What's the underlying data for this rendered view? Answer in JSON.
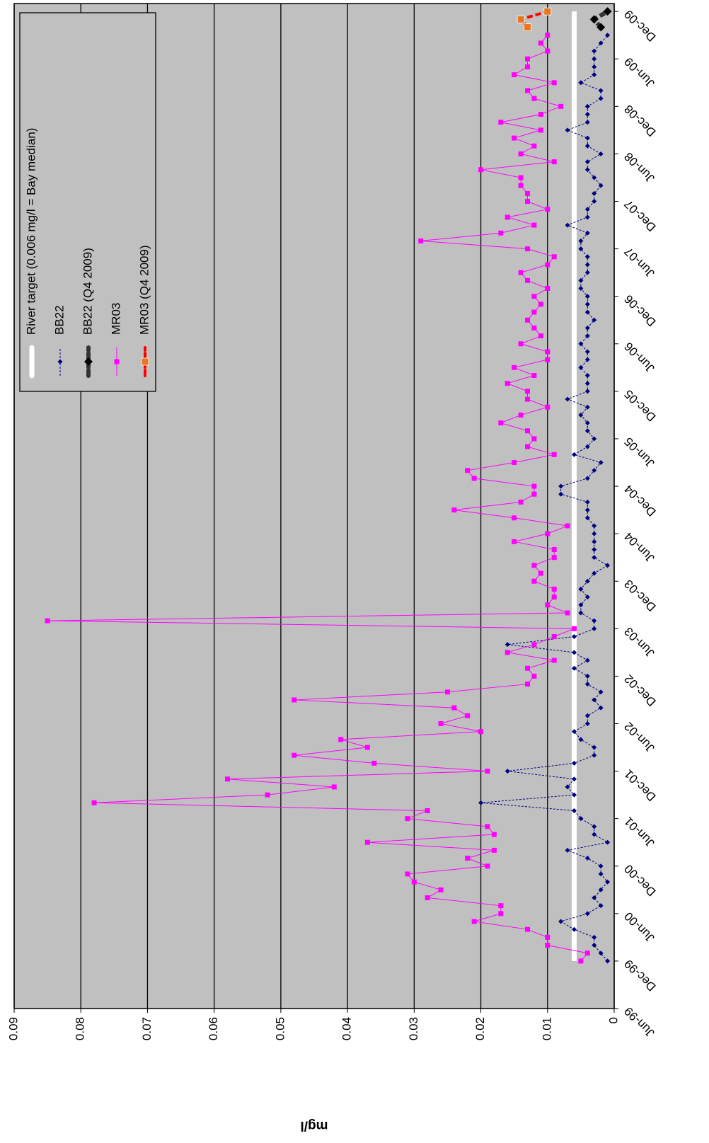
{
  "chart_data": {
    "type": "line",
    "y_label": "mg/l",
    "xlim": [
      "1999-06",
      "2010-01"
    ],
    "xticks": [
      {
        "value": "1999-06",
        "label": "Jun-99"
      },
      {
        "value": "1999-12",
        "label": "Dec-99"
      },
      {
        "value": "2000-06",
        "label": "Jun-00"
      },
      {
        "value": "2000-12",
        "label": "Dec-00"
      },
      {
        "value": "2001-06",
        "label": "Jun-01"
      },
      {
        "value": "2001-12",
        "label": "Dec-01"
      },
      {
        "value": "2002-06",
        "label": "Jun-02"
      },
      {
        "value": "2002-12",
        "label": "Dec-02"
      },
      {
        "value": "2003-06",
        "label": "Jun-03"
      },
      {
        "value": "2003-12",
        "label": "Dec-03"
      },
      {
        "value": "2004-06",
        "label": "Jun-04"
      },
      {
        "value": "2004-12",
        "label": "Dec-04"
      },
      {
        "value": "2005-06",
        "label": "Jun-05"
      },
      {
        "value": "2005-12",
        "label": "Dec-05"
      },
      {
        "value": "2006-06",
        "label": "Jun-06"
      },
      {
        "value": "2006-12",
        "label": "Dec-06"
      },
      {
        "value": "2007-06",
        "label": "Jun-07"
      },
      {
        "value": "2007-12",
        "label": "Dec-07"
      },
      {
        "value": "2008-06",
        "label": "Jun-08"
      },
      {
        "value": "2008-12",
        "label": "Dec-08"
      },
      {
        "value": "2009-06",
        "label": "Jun-09"
      },
      {
        "value": "2009-12",
        "label": "Dec-09"
      }
    ],
    "ylim": [
      0,
      0.09
    ],
    "yticks": [
      0,
      0.01,
      0.02,
      0.03,
      0.04,
      0.05,
      0.06,
      0.07,
      0.08,
      0.09
    ],
    "grid": true,
    "legend": "top-right",
    "x": [
      "1999-12",
      "2000-01",
      "2000-02",
      "2000-03",
      "2000-04",
      "2000-05",
      "2000-06",
      "2000-07",
      "2000-08",
      "2000-09",
      "2000-10",
      "2000-11",
      "2000-12",
      "2001-01",
      "2001-02",
      "2001-03",
      "2001-04",
      "2001-05",
      "2001-06",
      "2001-07",
      "2001-08",
      "2001-09",
      "2001-10",
      "2001-11",
      "2001-12",
      "2002-01",
      "2002-02",
      "2002-03",
      "2002-04",
      "2002-05",
      "2002-06",
      "2002-07",
      "2002-08",
      "2002-09",
      "2002-10",
      "2002-11",
      "2002-12",
      "2003-01",
      "2003-02",
      "2003-03",
      "2003-04",
      "2003-05",
      "2003-06",
      "2003-07",
      "2003-08",
      "2003-09",
      "2003-10",
      "2003-11",
      "2003-12",
      "2004-01",
      "2004-02",
      "2004-03",
      "2004-04",
      "2004-05",
      "2004-06",
      "2004-07",
      "2004-08",
      "2004-09",
      "2004-10",
      "2004-11",
      "2004-12",
      "2005-01",
      "2005-02",
      "2005-03",
      "2005-04",
      "2005-05",
      "2005-06",
      "2005-07",
      "2005-08",
      "2005-09",
      "2005-10",
      "2005-11",
      "2005-12",
      "2006-01",
      "2006-02",
      "2006-03",
      "2006-04",
      "2006-05",
      "2006-06",
      "2006-07",
      "2006-08",
      "2006-09",
      "2006-10",
      "2006-11",
      "2006-12",
      "2007-01",
      "2007-02",
      "2007-03",
      "2007-04",
      "2007-05",
      "2007-06",
      "2007-07",
      "2007-08",
      "2007-09",
      "2007-10",
      "2007-11",
      "2007-12",
      "2008-01",
      "2008-02",
      "2008-03",
      "2008-04",
      "2008-05",
      "2008-06",
      "2008-07",
      "2008-08",
      "2008-09",
      "2008-10",
      "2008-11",
      "2008-12",
      "2009-01",
      "2009-02",
      "2009-03",
      "2009-04",
      "2009-05",
      "2009-06",
      "2009-07",
      "2009-08",
      "2009-09"
    ],
    "series": [
      {
        "name": "River target (0.006 mg/l = Bay median)",
        "color": "#ffffff",
        "line": "solid",
        "width": 7,
        "marker": "none",
        "x": [
          "1999-12",
          "2009-12"
        ],
        "values": [
          0.006,
          0.006
        ]
      },
      {
        "name": "BB22",
        "color": "#000080",
        "line": "dashed",
        "width": 1,
        "marker": "diamond",
        "values": [
          0.001,
          0.002,
          0.003,
          0.003,
          0.006,
          0.008,
          0.004,
          0.002,
          0.003,
          0.002,
          0.001,
          0.002,
          0.002,
          0.004,
          0.007,
          0.001,
          0.003,
          0.003,
          0.005,
          0.006,
          0.02,
          0.006,
          0.007,
          0.006,
          0.016,
          0.006,
          0.003,
          0.003,
          0.005,
          0.006,
          0.004,
          0.004,
          0.002,
          0.003,
          0.002,
          0.004,
          0.004,
          0.006,
          0.004,
          0.006,
          0.016,
          0.006,
          0.003,
          0.003,
          0.005,
          0.005,
          0.004,
          0.005,
          0.004,
          0.003,
          0.001,
          0.003,
          0.003,
          0.003,
          0.003,
          0.003,
          0.004,
          0.004,
          0.004,
          0.008,
          0.008,
          0.004,
          0.003,
          0.002,
          0.006,
          0.004,
          0.003,
          0.004,
          0.004,
          0.005,
          0.004,
          0.007,
          0.004,
          0.004,
          0.004,
          0.005,
          0.004,
          0.004,
          0.005,
          0.004,
          0.004,
          0.003,
          0.004,
          0.004,
          0.004,
          0.005,
          0.005,
          0.004,
          0.004,
          0.004,
          0.005,
          0.005,
          0.004,
          0.007,
          0.004,
          0.004,
          0.003,
          0.003,
          0.002,
          0.003,
          0.004,
          0.004,
          0.002,
          0.004,
          0.004,
          0.007,
          0.004,
          0.004,
          0.004,
          0.002,
          0.002,
          0.005,
          0.003,
          0.003,
          0.003,
          0.003,
          0.002,
          0.001
        ]
      },
      {
        "name": "BB22 (Q4 2009)",
        "color": "#333333",
        "line": "dashed",
        "width": 6,
        "marker": "diamond-big",
        "marker_color": "#000000",
        "x": [
          "2009-10",
          "2009-11",
          "2009-12"
        ],
        "values": [
          0.002,
          0.003,
          0.001
        ]
      },
      {
        "name": "MR03",
        "color": "#ff00ff",
        "line": "solid",
        "width": 1,
        "marker": "square",
        "values": [
          0.005,
          0.004,
          0.01,
          0.01,
          0.013,
          0.021,
          0.017,
          0.017,
          0.028,
          0.026,
          0.03,
          0.031,
          0.019,
          0.022,
          0.018,
          0.037,
          0.018,
          0.019,
          0.031,
          0.028,
          0.078,
          0.052,
          0.042,
          0.058,
          0.019,
          0.036,
          0.048,
          0.037,
          0.041,
          0.02,
          0.026,
          0.022,
          0.024,
          0.048,
          0.025,
          0.013,
          0.012,
          0.013,
          0.009,
          0.016,
          0.012,
          0.009,
          0.006,
          0.085,
          0.007,
          0.01,
          0.009,
          0.009,
          0.012,
          0.011,
          0.012,
          0.009,
          0.009,
          0.015,
          0.01,
          0.007,
          0.015,
          0.024,
          0.014,
          0.012,
          0.012,
          0.021,
          0.022,
          0.015,
          0.009,
          0.013,
          0.012,
          0.013,
          0.017,
          0.014,
          0.01,
          0.013,
          0.013,
          0.016,
          0.012,
          0.015,
          0.01,
          0.01,
          0.014,
          0.011,
          0.012,
          0.013,
          0.012,
          0.011,
          0.012,
          0.01,
          0.013,
          0.014,
          0.01,
          0.009,
          0.013,
          0.029,
          0.017,
          0.012,
          0.016,
          0.01,
          0.013,
          0.013,
          0.014,
          0.014,
          0.02,
          0.009,
          0.014,
          0.012,
          0.015,
          0.011,
          0.017,
          0.011,
          0.008,
          0.012,
          0.013,
          0.009,
          0.015,
          0.013,
          0.013,
          0.01,
          0.011,
          0.01
        ]
      },
      {
        "name": "MR03 (Q4 2009)",
        "color": "#ff0000",
        "line": "dashed",
        "width": 4,
        "marker": "square-big",
        "marker_color": "#e87722",
        "x": [
          "2009-10",
          "2009-11",
          "2009-12"
        ],
        "values": [
          0.013,
          0.014,
          0.01
        ]
      }
    ]
  }
}
